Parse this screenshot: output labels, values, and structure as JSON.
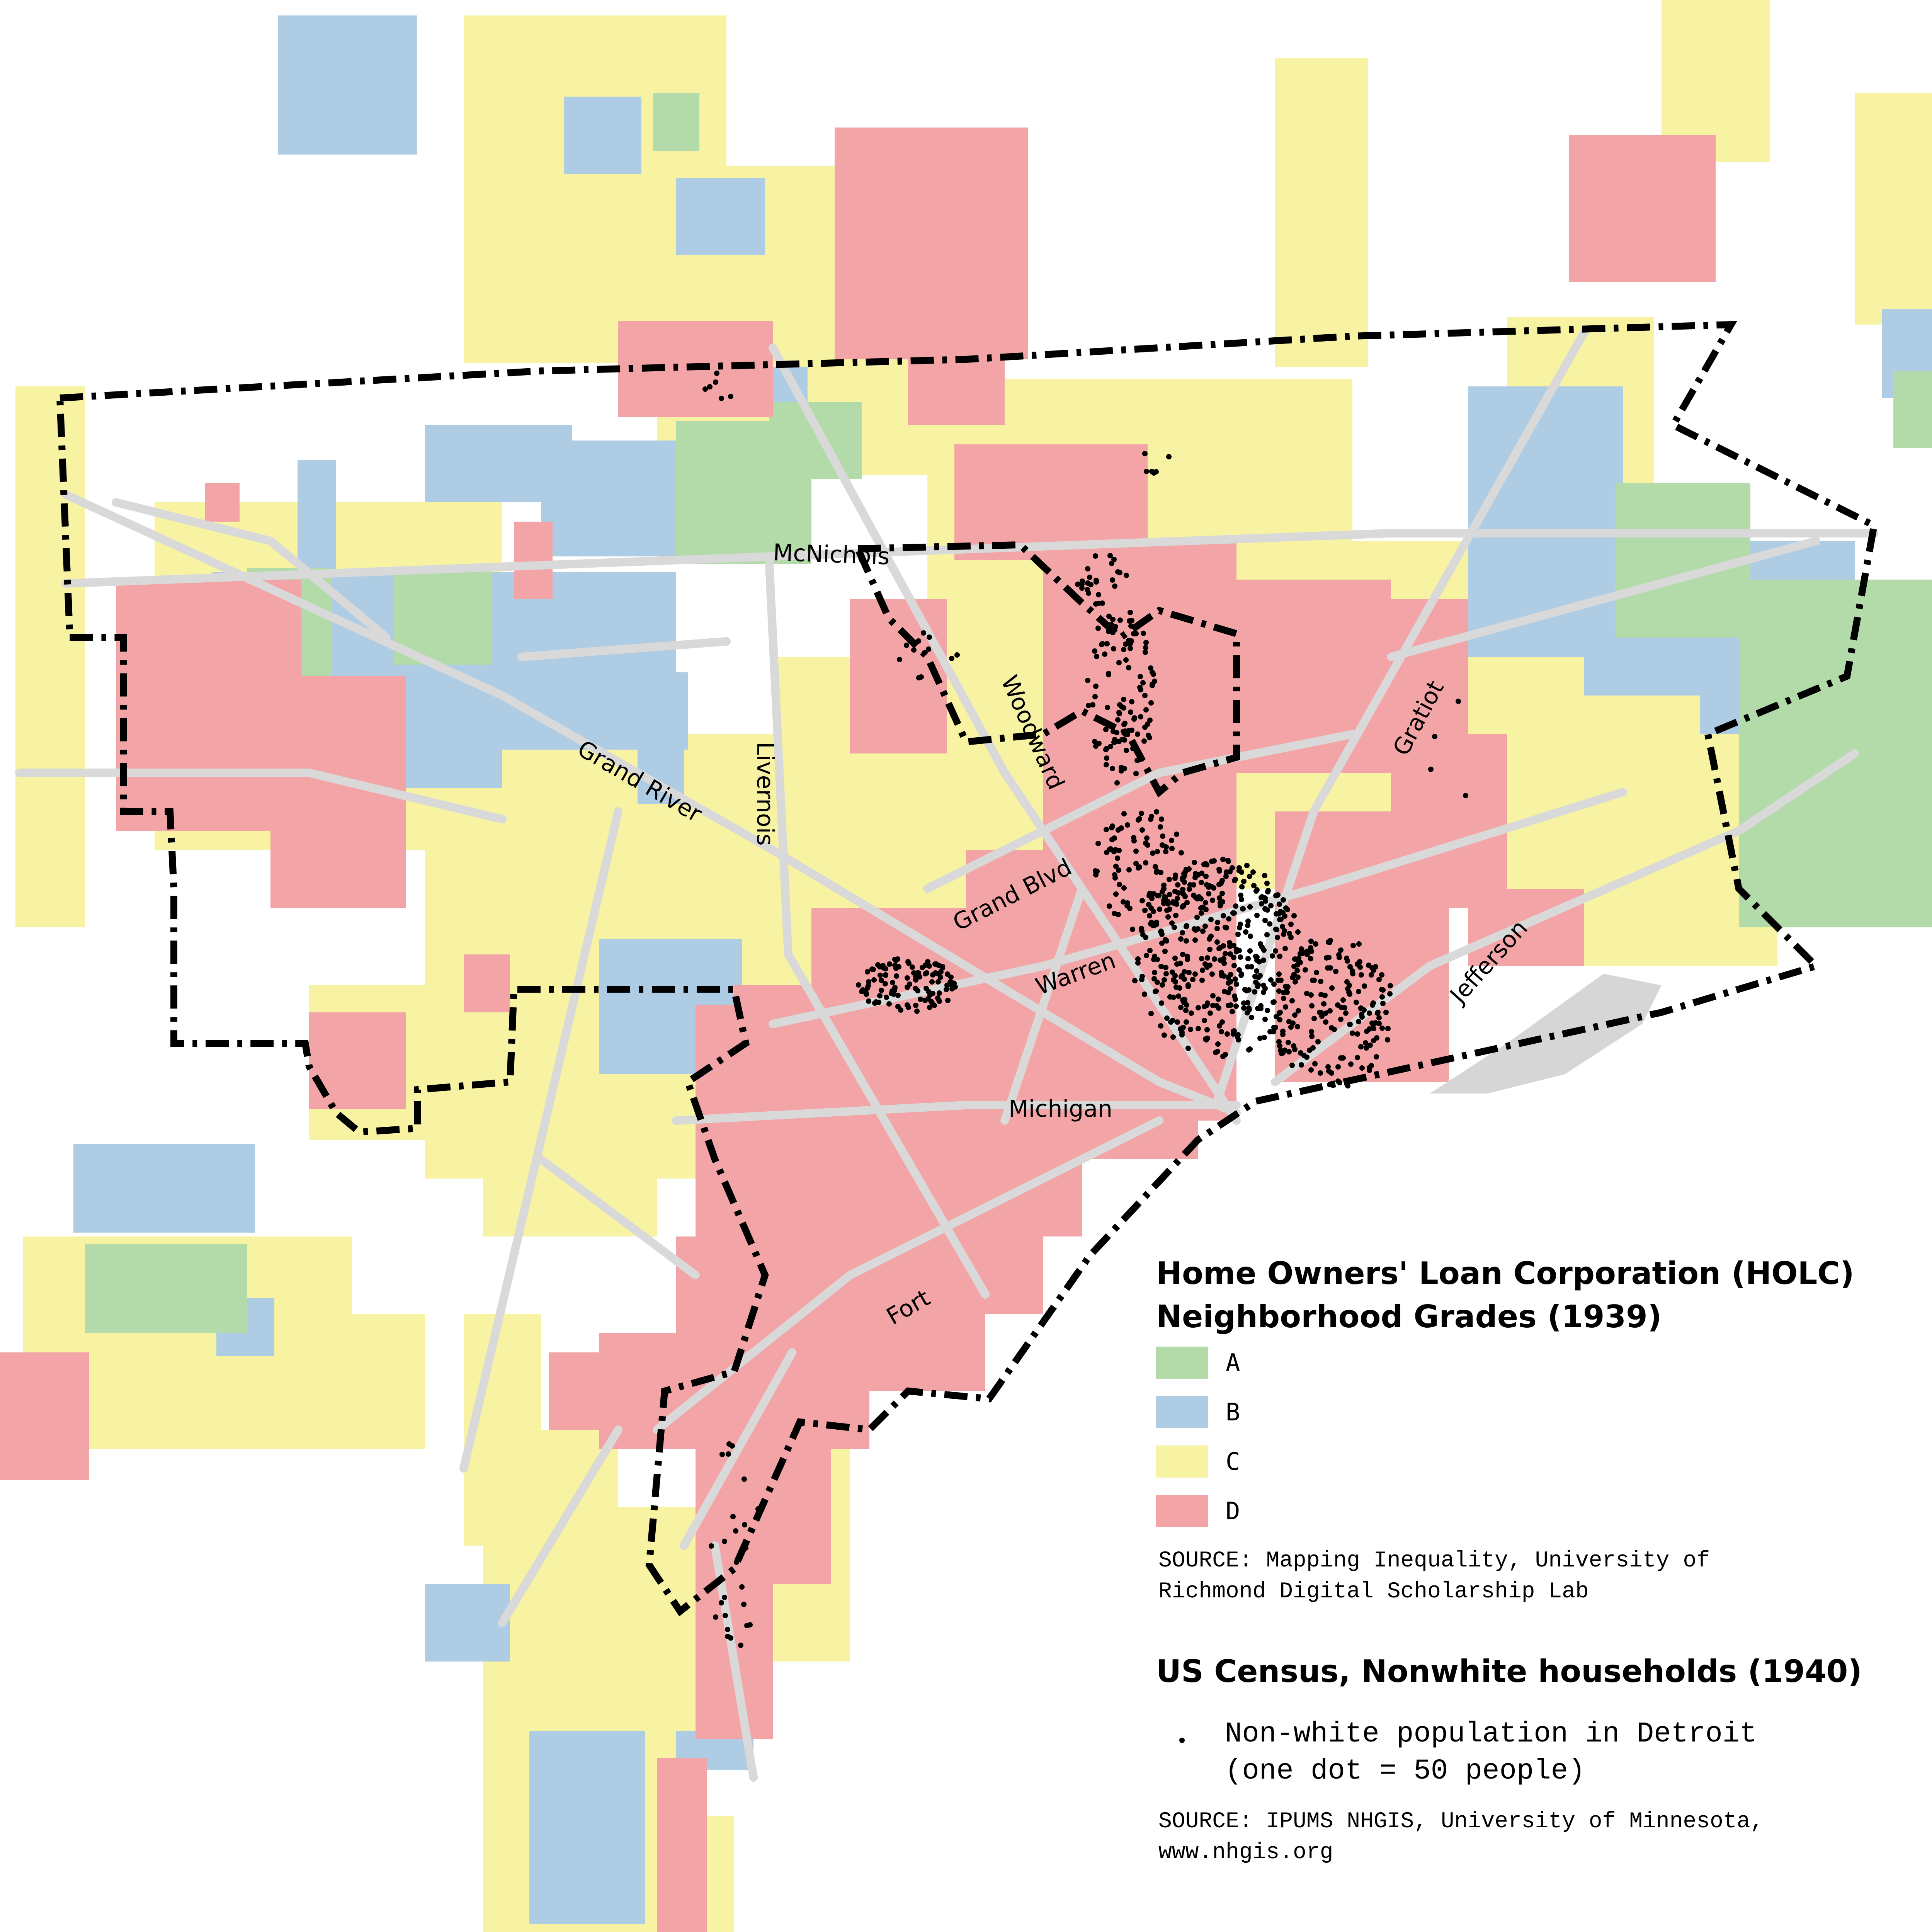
{
  "colors": {
    "grade_A": "#b3dbaa",
    "grade_B": "#aecde4",
    "grade_C": "#f7f3a3",
    "grade_D": "#f2a4a6",
    "roads": "#d9d9d9",
    "city_boundary": "#000000",
    "island": "#d6d6d6"
  },
  "streets": [
    {
      "name": "McNichols"
    },
    {
      "name": "Grand River"
    },
    {
      "name": "Livernois"
    },
    {
      "name": "Woodward"
    },
    {
      "name": "Gratiot"
    },
    {
      "name": "Grand Blvd"
    },
    {
      "name": "Warren"
    },
    {
      "name": "Jefferson"
    },
    {
      "name": "Michigan"
    },
    {
      "name": "Fort"
    }
  ],
  "legend": {
    "holc_title_line1": "Home Owners' Loan Corporation (HOLC)",
    "holc_title_line2": "Neighborhood Grades (1939)",
    "grades": [
      {
        "label": "A",
        "color": "#b3dbaa"
      },
      {
        "label": "B",
        "color": "#aecde4"
      },
      {
        "label": "C",
        "color": "#f7f3a3"
      },
      {
        "label": "D",
        "color": "#f2a4a6"
      }
    ],
    "holc_source_line1": "SOURCE: Mapping Inequality, University of",
    "holc_source_line2": "Richmond Digital Scholarship Lab",
    "census_title": "US Census, Nonwhite households (1940)",
    "dot_label_line1": "Non-white population in Detroit",
    "dot_label_line2": "(one dot = 50 people)",
    "census_source_line1": "SOURCE: IPUMS NHGIS, University of Minnesota,",
    "census_source_line2": "www.nhgis.org"
  }
}
